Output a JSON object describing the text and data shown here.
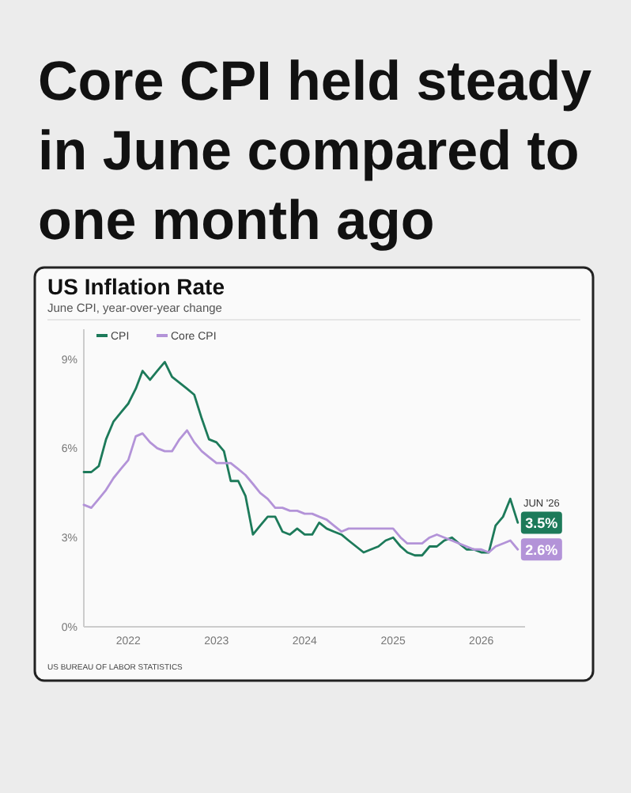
{
  "chart_data": {
    "type": "line",
    "title": "Core CPI held steady in June compared to one month ago",
    "subtitle": "US Inflation Rate",
    "annotations": [
      "June CPI, year-over-year change",
      {
        "text": "JUN '26",
        "x": "2026-06",
        "y": 3.5
      },
      "US BUREAU OF LABOR STATISTICS"
    ],
    "x": [
      "2021-07",
      "2021-08",
      "2021-09",
      "2021-10",
      "2021-11",
      "2021-12",
      "2022-01",
      "2022-02",
      "2022-03",
      "2022-04",
      "2022-05",
      "2022-06",
      "2022-07",
      "2022-08",
      "2022-09",
      "2022-10",
      "2022-11",
      "2022-12",
      "2023-01",
      "2023-02",
      "2023-03",
      "2023-04",
      "2023-05",
      "2023-06",
      "2023-07",
      "2023-08",
      "2023-09",
      "2023-10",
      "2023-11",
      "2023-12",
      "2024-01",
      "2024-02",
      "2024-03",
      "2024-04",
      "2024-05",
      "2024-06",
      "2024-07",
      "2024-08",
      "2024-09",
      "2024-10",
      "2024-11",
      "2024-12",
      "2025-01",
      "2025-02",
      "2025-03",
      "2025-04",
      "2025-05",
      "2025-06",
      "2025-07",
      "2025-08",
      "2025-09",
      "2025-10",
      "2025-11",
      "2025-12",
      "2026-01",
      "2026-02",
      "2026-03",
      "2026-04",
      "2026-05",
      "2026-06"
    ],
    "series": [
      {
        "name": "CPI",
        "color": "#1d7a5a",
        "values": [
          5.2,
          5.2,
          5.4,
          6.3,
          6.9,
          7.2,
          7.5,
          8.0,
          8.6,
          8.3,
          8.6,
          8.9,
          8.4,
          8.2,
          8.0,
          7.8,
          7.0,
          6.3,
          6.2,
          5.9,
          4.9,
          4.9,
          4.4,
          3.1,
          3.4,
          3.7,
          3.7,
          3.2,
          3.1,
          3.3,
          3.1,
          3.1,
          3.5,
          3.3,
          3.2,
          3.1,
          2.9,
          2.7,
          2.5,
          2.6,
          2.7,
          2.9,
          3.0,
          2.7,
          2.5,
          2.4,
          2.4,
          2.7,
          2.7,
          2.9,
          3.0,
          2.8,
          2.6,
          2.6,
          2.5,
          2.5,
          3.4,
          3.7,
          4.3,
          3.5
        ],
        "value_labels": [
          null,
          null,
          null,
          null,
          null,
          null,
          null,
          null,
          null,
          null,
          null,
          null,
          null,
          null,
          null,
          null,
          null,
          null,
          null,
          null,
          null,
          null,
          null,
          null,
          null,
          null,
          null,
          null,
          null,
          null,
          null,
          null,
          null,
          null,
          null,
          null,
          null,
          null,
          null,
          null,
          null,
          null,
          null,
          null,
          null,
          null,
          null,
          null,
          null,
          null,
          null,
          null,
          null,
          null,
          null,
          null,
          null,
          null,
          null,
          "3.5%"
        ]
      },
      {
        "name": "Core CPI",
        "color": "#b393d8",
        "values": [
          4.1,
          4.0,
          4.3,
          4.6,
          5.0,
          5.3,
          5.6,
          6.4,
          6.5,
          6.2,
          6.0,
          5.9,
          5.9,
          6.3,
          6.6,
          6.2,
          5.9,
          5.7,
          5.5,
          5.5,
          5.5,
          5.3,
          5.1,
          4.8,
          4.5,
          4.3,
          4.0,
          4.0,
          3.9,
          3.9,
          3.8,
          3.8,
          3.7,
          3.6,
          3.4,
          3.2,
          3.3,
          3.3,
          3.3,
          3.3,
          3.3,
          3.3,
          3.3,
          3.0,
          2.8,
          2.8,
          2.8,
          3.0,
          3.1,
          3.0,
          2.9,
          2.8,
          2.7,
          2.6,
          2.6,
          2.5,
          2.7,
          2.8,
          2.9,
          2.6
        ],
        "value_labels": [
          null,
          null,
          null,
          null,
          null,
          null,
          null,
          null,
          null,
          null,
          null,
          null,
          null,
          null,
          null,
          null,
          null,
          null,
          null,
          null,
          null,
          null,
          null,
          null,
          null,
          null,
          null,
          null,
          null,
          null,
          null,
          null,
          null,
          null,
          null,
          null,
          null,
          null,
          null,
          null,
          null,
          null,
          null,
          null,
          null,
          null,
          null,
          null,
          null,
          null,
          null,
          null,
          null,
          null,
          null,
          null,
          null,
          null,
          null,
          "2.6%"
        ]
      }
    ],
    "xlim": [
      "2021-07",
      "2026-07"
    ],
    "xticks": [
      {
        "value": "2022-01",
        "label": "2022"
      },
      {
        "value": "2023-01",
        "label": "2023"
      },
      {
        "value": "2024-01",
        "label": "2024"
      },
      {
        "value": "2025-01",
        "label": "2025"
      },
      {
        "value": "2026-01",
        "label": "2026"
      }
    ],
    "ylim": [
      0,
      10
    ],
    "yticks": [
      {
        "value": 0,
        "label": "0%"
      },
      {
        "value": 3,
        "label": "3%"
      },
      {
        "value": 6,
        "label": "6%"
      },
      {
        "value": 9,
        "label": "9%"
      }
    ],
    "legend": "top left",
    "line_style": "solid",
    "marker": "none"
  }
}
